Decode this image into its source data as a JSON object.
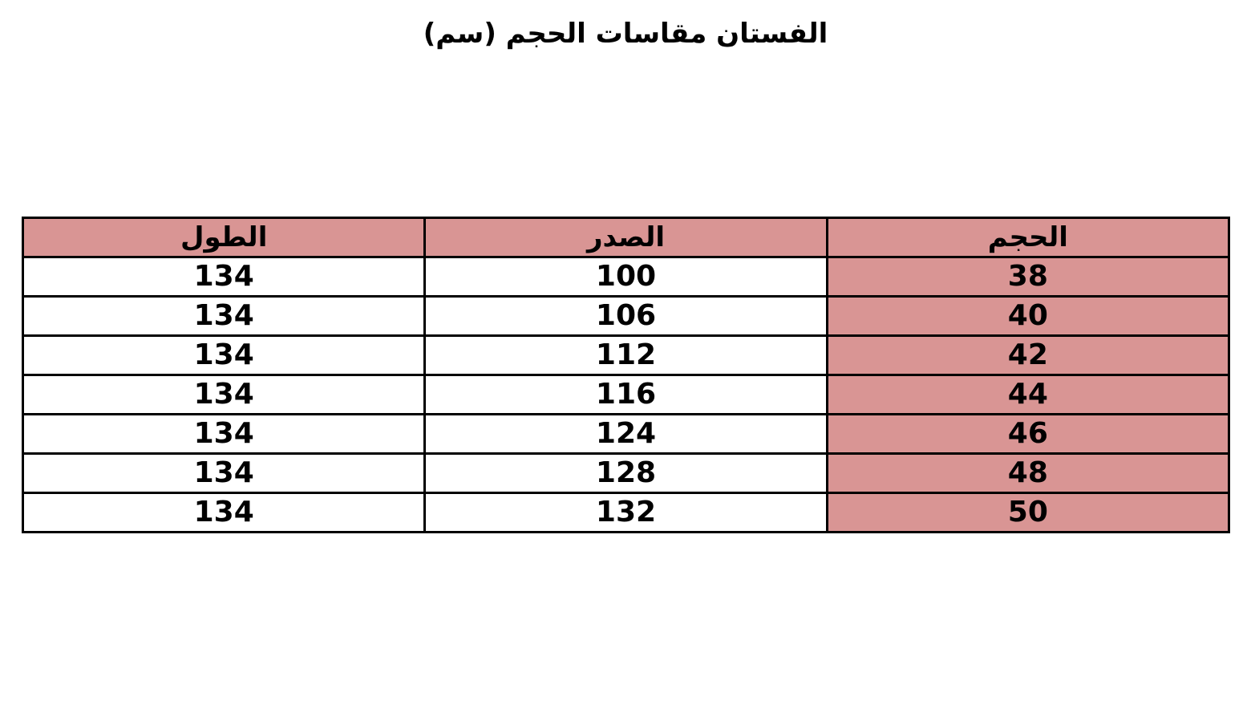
{
  "title": "الفستان مقاسات الحجم (سم)",
  "colors": {
    "highlight": "#d99594",
    "border": "#000000"
  },
  "chart_data": {
    "type": "table",
    "title": "الفستان مقاسات الحجم (سم)",
    "columns": [
      "الحجم",
      "الصدر",
      "الطول"
    ],
    "rows": [
      [
        "38",
        "100",
        "134"
      ],
      [
        "40",
        "106",
        "134"
      ],
      [
        "42",
        "112",
        "134"
      ],
      [
        "44",
        "116",
        "134"
      ],
      [
        "46",
        "124",
        "134"
      ],
      [
        "48",
        "128",
        "134"
      ],
      [
        "50",
        "132",
        "134"
      ]
    ]
  }
}
